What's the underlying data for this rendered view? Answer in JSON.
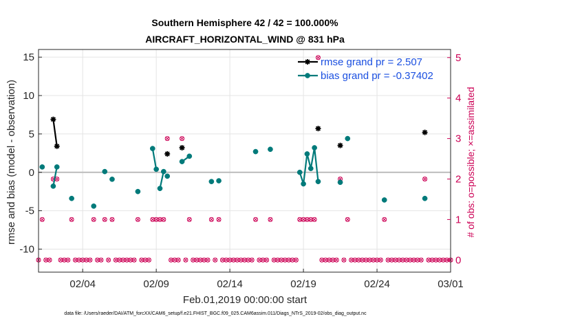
{
  "chart_data": {
    "type": "line",
    "title_line1": "Southern Hemisphere 42 / 42 = 100.000%",
    "title_line2": "AIRCRAFT_HORIZONTAL_WIND @ 831 hPa",
    "xlabel": "Feb.01,2019 00:00:00 start",
    "ylabel": "rmse and bias (model - observation)",
    "ylabel_right": "# of obs: o=possible; ×=assimilated",
    "footnote": "data file: /Users/raeder/DAI/ATM_forcXX/CAM6_setup/f.e21.FHIST_BGC.f09_025.CAM6assim.011/Diags_NTrS_2019-02/obs_diag_output.nc",
    "xlim": [
      0,
      28
    ],
    "ylim": [
      -13,
      16
    ],
    "ylim_right": [
      -0.3,
      5.2
    ],
    "x_ticks": [
      {
        "v": 3,
        "label": "02/04"
      },
      {
        "v": 8,
        "label": "02/09"
      },
      {
        "v": 13,
        "label": "02/14"
      },
      {
        "v": 18,
        "label": "02/19"
      },
      {
        "v": 23,
        "label": "02/24"
      },
      {
        "v": 28,
        "label": "03/01"
      }
    ],
    "y_ticks": [
      {
        "v": 15,
        "label": "15"
      },
      {
        "v": 10,
        "label": "10"
      },
      {
        "v": 5,
        "label": "5"
      },
      {
        "v": 0,
        "label": "0"
      },
      {
        "v": -5,
        "label": "-5"
      },
      {
        "v": -10,
        "label": "-10"
      }
    ],
    "y_ticks_right": [
      {
        "v": 5,
        "label": "5"
      },
      {
        "v": 4,
        "label": "4"
      },
      {
        "v": 3,
        "label": "3"
      },
      {
        "v": 2,
        "label": "2"
      },
      {
        "v": 1,
        "label": "1"
      },
      {
        "v": 0,
        "label": "0"
      }
    ],
    "zero_line": 0,
    "series": [
      {
        "name": "rmse grand pr = 2.507",
        "color": "#000000",
        "marker": "star",
        "segments": [
          [
            [
              1.0,
              6.9
            ],
            [
              1.25,
              3.4
            ]
          ],
          [
            [
              8.75,
              2.4
            ]
          ],
          [
            [
              9.75,
              3.2
            ]
          ],
          [
            [
              19.0,
              5.7
            ]
          ],
          [
            [
              20.5,
              3.5
            ]
          ],
          [
            [
              26.25,
              5.2
            ]
          ]
        ]
      },
      {
        "name": "bias grand pr = -0.37402",
        "color": "#007a7a",
        "marker": "dot",
        "segments": [
          [
            [
              -0.25,
              -0.3
            ]
          ],
          [
            [
              0.25,
              0.7
            ]
          ],
          [
            [
              1.0,
              -1.8
            ],
            [
              1.25,
              0.7
            ]
          ],
          [
            [
              2.25,
              -3.4
            ]
          ],
          [
            [
              3.75,
              -4.4
            ]
          ],
          [
            [
              4.5,
              0.1
            ]
          ],
          [
            [
              5.0,
              -0.9
            ]
          ],
          [
            [
              6.75,
              -2.5
            ]
          ],
          [
            [
              7.75,
              3.1
            ],
            [
              8.0,
              0.4
            ]
          ],
          [
            [
              8.25,
              -2.1
            ],
            [
              8.5,
              0.1
            ]
          ],
          [
            [
              8.75,
              -0.5
            ]
          ],
          [
            [
              9.75,
              1.4
            ],
            [
              10.25,
              2.1
            ]
          ],
          [
            [
              11.75,
              -1.2
            ]
          ],
          [
            [
              12.25,
              -1.1
            ]
          ],
          [
            [
              14.75,
              2.7
            ]
          ],
          [
            [
              15.75,
              3.0
            ]
          ],
          [
            [
              17.75,
              0.0
            ],
            [
              18.0,
              -1.5
            ],
            [
              18.25,
              2.4
            ],
            [
              18.5,
              0.5
            ],
            [
              18.75,
              3.2
            ],
            [
              19.0,
              -1.2
            ]
          ],
          [
            [
              20.5,
              -1.3
            ]
          ],
          [
            [
              21.0,
              4.4
            ]
          ],
          [
            [
              23.5,
              -3.6
            ]
          ],
          [
            [
              26.25,
              -3.4
            ]
          ]
        ]
      }
    ],
    "obs_counts": {
      "name": "# of obs",
      "possible_color": "#cc0055",
      "assimilated_color": "#cc0055",
      "points": [
        [
          -0.5,
          0
        ],
        [
          -0.25,
          1
        ],
        [
          0.0,
          0
        ],
        [
          0.25,
          1
        ],
        [
          0.5,
          0
        ],
        [
          0.75,
          0
        ],
        [
          1.0,
          2
        ],
        [
          1.25,
          2
        ],
        [
          1.5,
          0
        ],
        [
          1.75,
          0
        ],
        [
          2.0,
          0
        ],
        [
          2.25,
          1
        ],
        [
          2.5,
          0
        ],
        [
          2.75,
          0
        ],
        [
          3.0,
          0
        ],
        [
          3.25,
          0
        ],
        [
          3.5,
          0
        ],
        [
          3.75,
          1
        ],
        [
          4.0,
          0
        ],
        [
          4.25,
          0
        ],
        [
          4.5,
          1
        ],
        [
          4.75,
          0
        ],
        [
          5.0,
          1
        ],
        [
          5.25,
          0
        ],
        [
          5.5,
          0
        ],
        [
          5.75,
          0
        ],
        [
          6.0,
          0
        ],
        [
          6.25,
          0
        ],
        [
          6.5,
          0
        ],
        [
          6.75,
          1
        ],
        [
          7.0,
          0
        ],
        [
          7.25,
          0
        ],
        [
          7.5,
          0
        ],
        [
          7.75,
          1
        ],
        [
          8.0,
          1
        ],
        [
          8.25,
          1
        ],
        [
          8.5,
          1
        ],
        [
          8.75,
          3
        ],
        [
          9.0,
          0
        ],
        [
          9.25,
          0
        ],
        [
          9.5,
          0
        ],
        [
          9.75,
          3
        ],
        [
          10.0,
          0
        ],
        [
          10.25,
          1
        ],
        [
          10.5,
          0
        ],
        [
          10.75,
          0
        ],
        [
          11.0,
          0
        ],
        [
          11.25,
          0
        ],
        [
          11.5,
          0
        ],
        [
          11.75,
          1
        ],
        [
          12.0,
          0
        ],
        [
          12.25,
          1
        ],
        [
          12.5,
          0
        ],
        [
          12.75,
          0
        ],
        [
          13.0,
          0
        ],
        [
          13.25,
          0
        ],
        [
          13.5,
          0
        ],
        [
          13.75,
          0
        ],
        [
          14.0,
          0
        ],
        [
          14.25,
          0
        ],
        [
          14.5,
          0
        ],
        [
          14.75,
          1
        ],
        [
          15.0,
          0
        ],
        [
          15.25,
          0
        ],
        [
          15.5,
          0
        ],
        [
          15.75,
          1
        ],
        [
          16.0,
          0
        ],
        [
          16.25,
          0
        ],
        [
          16.5,
          0
        ],
        [
          16.75,
          0
        ],
        [
          17.0,
          0
        ],
        [
          17.25,
          0
        ],
        [
          17.5,
          0
        ],
        [
          17.75,
          1
        ],
        [
          18.0,
          1
        ],
        [
          18.25,
          1
        ],
        [
          18.5,
          1
        ],
        [
          18.75,
          1
        ],
        [
          19.0,
          5
        ],
        [
          19.25,
          0
        ],
        [
          19.5,
          0
        ],
        [
          19.75,
          0
        ],
        [
          20.0,
          0
        ],
        [
          20.25,
          0
        ],
        [
          20.5,
          2
        ],
        [
          20.75,
          0
        ],
        [
          21.0,
          1
        ],
        [
          21.25,
          0
        ],
        [
          21.5,
          0
        ],
        [
          21.75,
          0
        ],
        [
          22.0,
          0
        ],
        [
          22.25,
          0
        ],
        [
          22.5,
          0
        ],
        [
          22.75,
          0
        ],
        [
          23.0,
          0
        ],
        [
          23.25,
          0
        ],
        [
          23.5,
          1
        ],
        [
          23.75,
          0
        ],
        [
          24.0,
          0
        ],
        [
          24.25,
          0
        ],
        [
          24.5,
          0
        ],
        [
          24.75,
          0
        ],
        [
          25.0,
          0
        ],
        [
          25.25,
          0
        ],
        [
          25.5,
          0
        ],
        [
          25.75,
          0
        ],
        [
          26.0,
          0
        ],
        [
          26.25,
          2
        ],
        [
          26.5,
          0
        ],
        [
          26.75,
          0
        ],
        [
          27.0,
          0
        ],
        [
          27.25,
          0
        ],
        [
          27.5,
          0
        ],
        [
          27.75,
          0
        ],
        [
          28.0,
          0
        ]
      ]
    }
  }
}
